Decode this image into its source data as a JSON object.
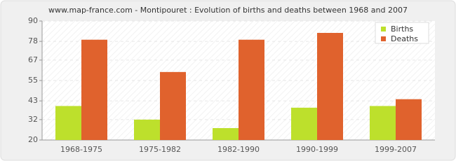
{
  "chart_data": {
    "type": "bar",
    "title": "www.map-france.com - Montipouret : Evolution of births and deaths between 1968 and 2007",
    "categories": [
      "1968-1975",
      "1975-1982",
      "1982-1990",
      "1990-1999",
      "1999-2007"
    ],
    "series": [
      {
        "name": "Births",
        "color": "#bde02c",
        "values": [
          40,
          32,
          27,
          39,
          40
        ]
      },
      {
        "name": "Deaths",
        "color": "#e0622d",
        "values": [
          79,
          60,
          79,
          83,
          44
        ]
      }
    ],
    "ylim": [
      20,
      90
    ],
    "yticks": [
      20,
      32,
      43,
      55,
      67,
      78,
      90
    ],
    "grid": true,
    "legend": "top-right"
  }
}
